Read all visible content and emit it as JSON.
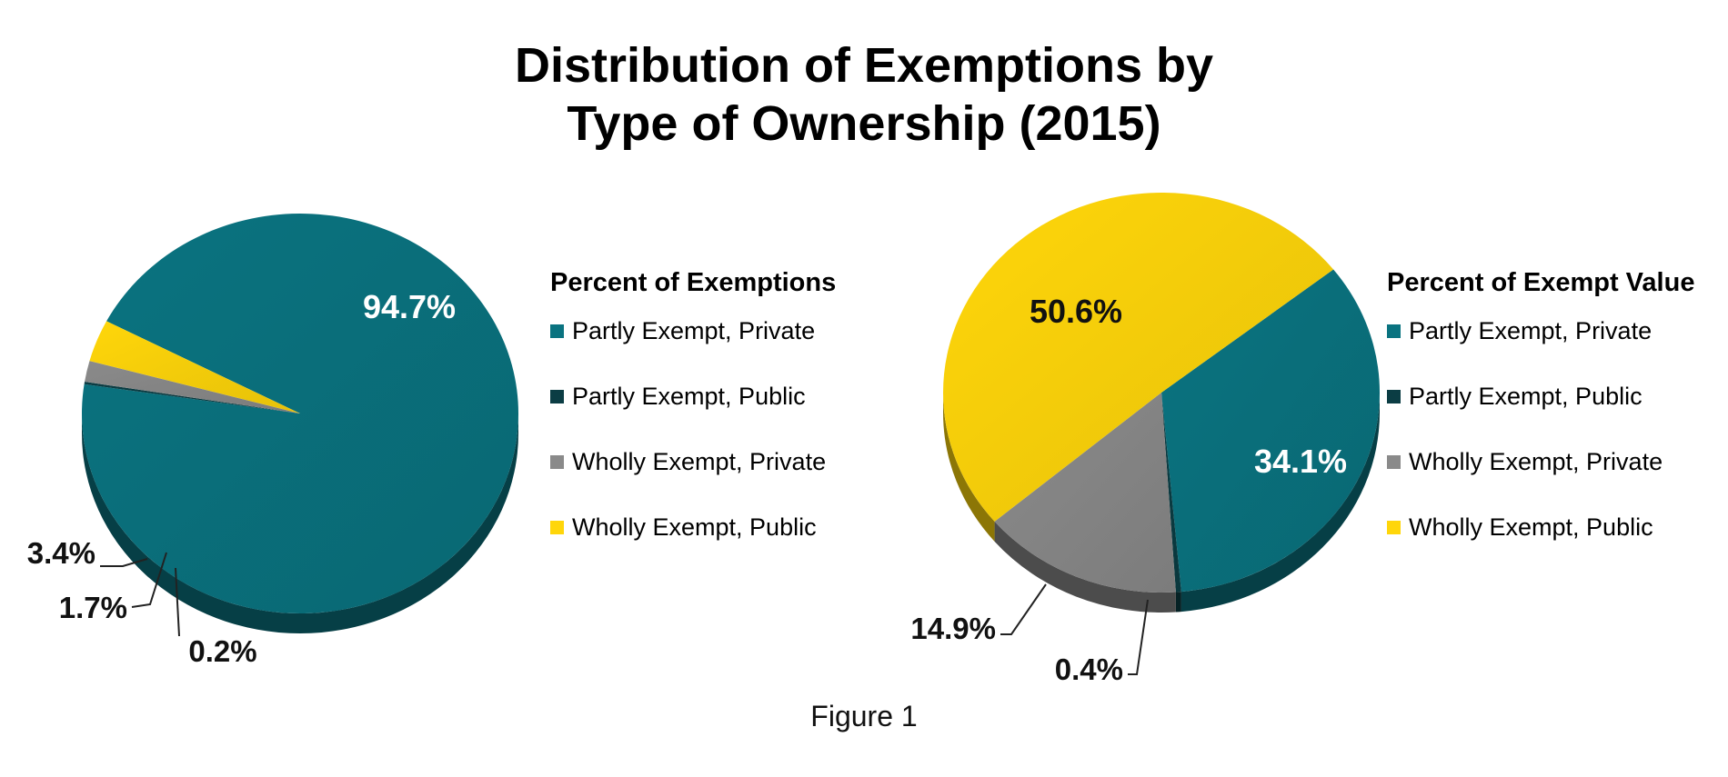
{
  "title_line1": "Distribution of Exemptions by",
  "title_line2": "Type of Ownership (2015)",
  "figure_caption": "Figure 1",
  "chart_data": [
    {
      "type": "pie",
      "title": "Percent of Exemptions",
      "slices": [
        {
          "label": "Partly Exempt, Private",
          "value": 94.7,
          "display": "94.7%",
          "color": "#0a7380"
        },
        {
          "label": "Partly Exempt, Public",
          "value": 0.2,
          "display": "0.2%",
          "color": "#0b3d44"
        },
        {
          "label": "Wholly Exempt, Private",
          "value": 1.7,
          "display": "1.7%",
          "color": "#8a8a8a"
        },
        {
          "label": "Wholly Exempt, Public",
          "value": 3.4,
          "display": "3.4%",
          "color": "#ffd60a"
        }
      ]
    },
    {
      "type": "pie",
      "title": "Percent of Exempt Value",
      "slices": [
        {
          "label": "Partly Exempt, Private",
          "value": 34.1,
          "display": "34.1%",
          "color": "#0a7380"
        },
        {
          "label": "Partly Exempt, Public",
          "value": 0.4,
          "display": "0.4%",
          "color": "#0b3d44"
        },
        {
          "label": "Wholly Exempt, Private",
          "value": 14.9,
          "display": "14.9%",
          "color": "#8a8a8a"
        },
        {
          "label": "Wholly Exempt, Public",
          "value": 50.6,
          "display": "50.6%",
          "color": "#ffd60a"
        }
      ]
    }
  ]
}
